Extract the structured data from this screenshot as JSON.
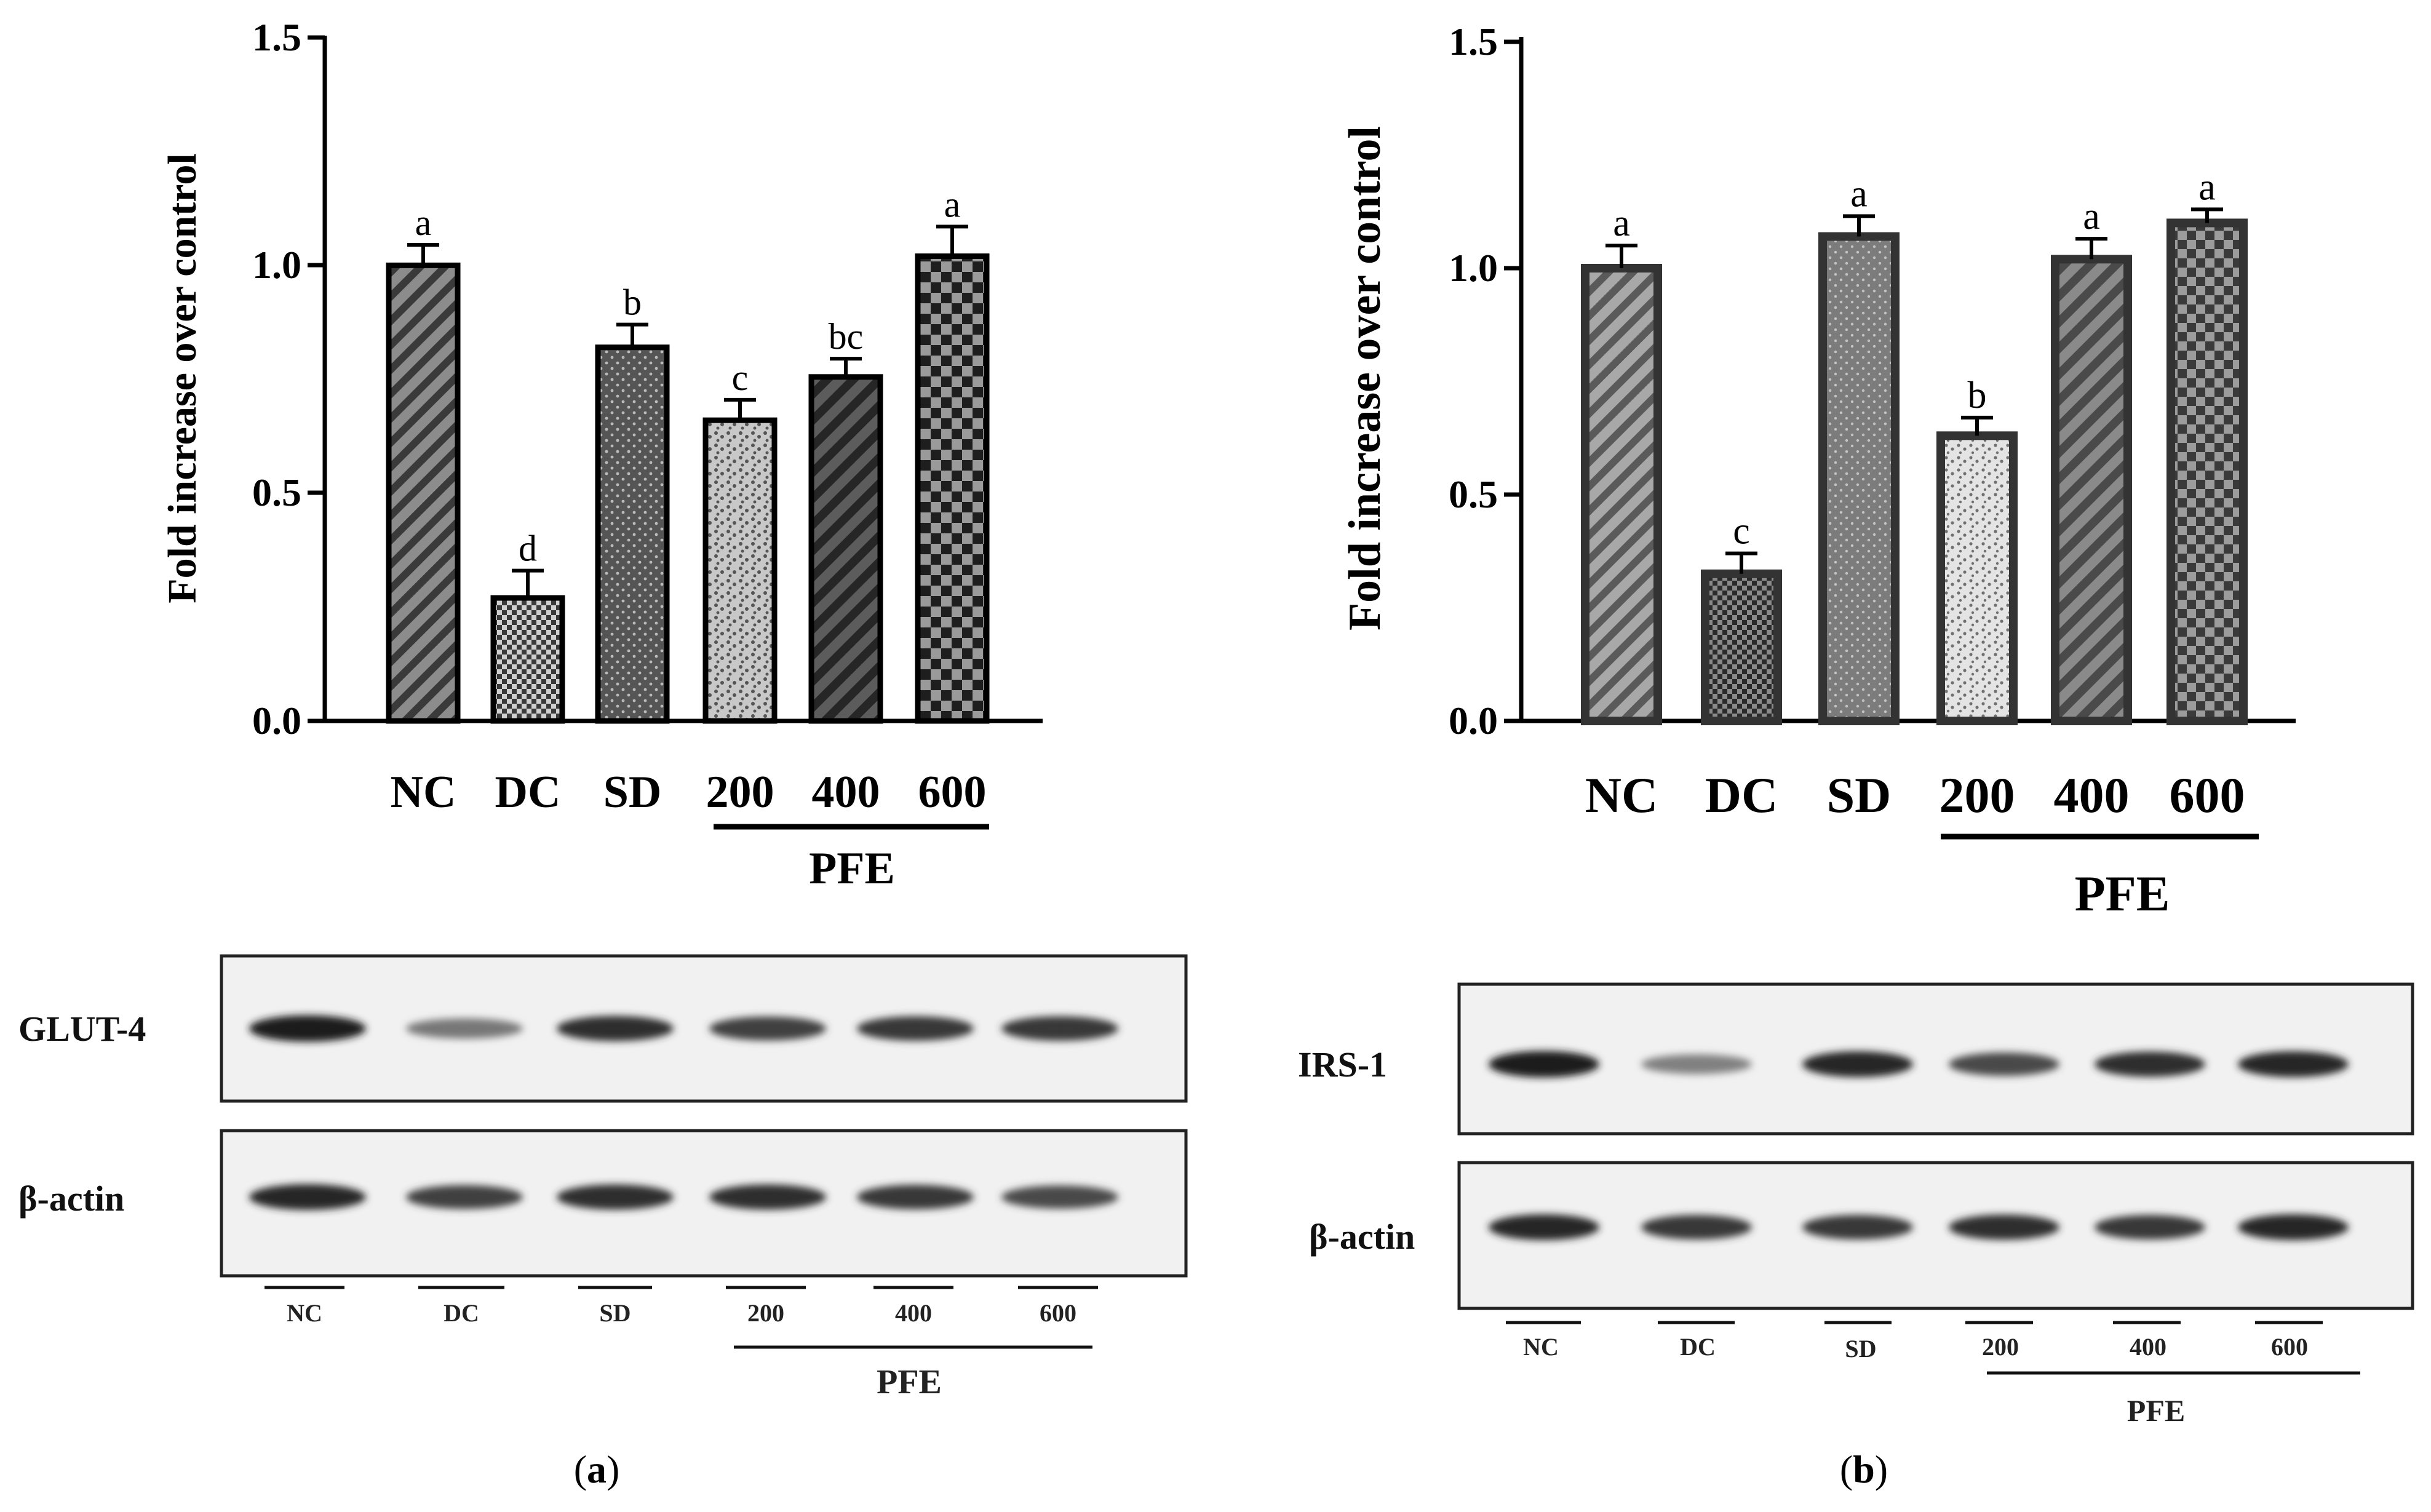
{
  "chart_data": [
    {
      "type": "bar",
      "panel": "a",
      "ylabel": "Fold increase over control",
      "ylim": [
        0,
        1.5
      ],
      "yticks": [
        "0.0",
        "0.5",
        "1.0",
        "1.5"
      ],
      "categories": [
        "NC",
        "DC",
        "SD",
        "200",
        "400",
        "600"
      ],
      "group_label": "PFE",
      "values": [
        1.0,
        0.27,
        0.82,
        0.66,
        0.755,
        1.02
      ],
      "errors": [
        0.045,
        0.06,
        0.05,
        0.045,
        0.04,
        0.065
      ],
      "significance": [
        "a",
        "d",
        "b",
        "c",
        "bc",
        "a"
      ],
      "patterns": [
        "diagonal",
        "checker-small",
        "dots",
        "speckle",
        "diagonal-dark",
        "checker-large"
      ],
      "fills": [
        "#6e6e6e",
        "#7a7a7a",
        "#555555",
        "#bdbdbd",
        "#4a4a4a",
        "#2e2e2e"
      ]
    },
    {
      "type": "bar",
      "panel": "b",
      "ylabel": "Fold increase over control",
      "ylim": [
        0,
        1.5
      ],
      "yticks": [
        "0.0",
        "0.5",
        "1.0",
        "1.5"
      ],
      "categories": [
        "NC",
        "DC",
        "SD",
        "200",
        "400",
        "600"
      ],
      "group_label": "PFE",
      "values": [
        1.0,
        0.325,
        1.07,
        0.63,
        1.02,
        1.1
      ],
      "errors": [
        0.05,
        0.045,
        0.045,
        0.04,
        0.045,
        0.03
      ],
      "significance": [
        "a",
        "c",
        "a",
        "b",
        "a",
        "a"
      ],
      "patterns": [
        "diagonal",
        "checker-small",
        "dots",
        "speckle",
        "diagonal-dark",
        "checker-large"
      ],
      "fills": [
        "#8a8a8a",
        "#5a5a5a",
        "#7a7a7a",
        "#d6d6d6",
        "#6a6a6a",
        "#4a4a4a"
      ]
    }
  ],
  "blots": [
    {
      "panel": "a",
      "rows": [
        {
          "label": "GLUT-4",
          "intensity": [
            0.95,
            0.45,
            0.85,
            0.75,
            0.8,
            0.8
          ]
        },
        {
          "label": "β-actin",
          "intensity": [
            0.9,
            0.75,
            0.85,
            0.85,
            0.8,
            0.7
          ]
        }
      ],
      "lanes": [
        "NC",
        "DC",
        "SD",
        "200",
        "400",
        "600"
      ],
      "group_label": "PFE"
    },
    {
      "panel": "b",
      "rows": [
        {
          "label": "IRS-1",
          "intensity": [
            0.95,
            0.4,
            0.9,
            0.7,
            0.85,
            0.9
          ]
        },
        {
          "label": "β-actin",
          "intensity": [
            0.9,
            0.8,
            0.8,
            0.85,
            0.8,
            0.9
          ]
        }
      ],
      "lanes": [
        "NC",
        "DC",
        "SD",
        "200",
        "400",
        "600"
      ],
      "group_label": "PFE"
    }
  ],
  "panel_labels": {
    "a": {
      "open": "(",
      "letter": "a",
      "close": ")"
    },
    "b": {
      "open": "(",
      "letter": "b",
      "close": ")"
    }
  }
}
